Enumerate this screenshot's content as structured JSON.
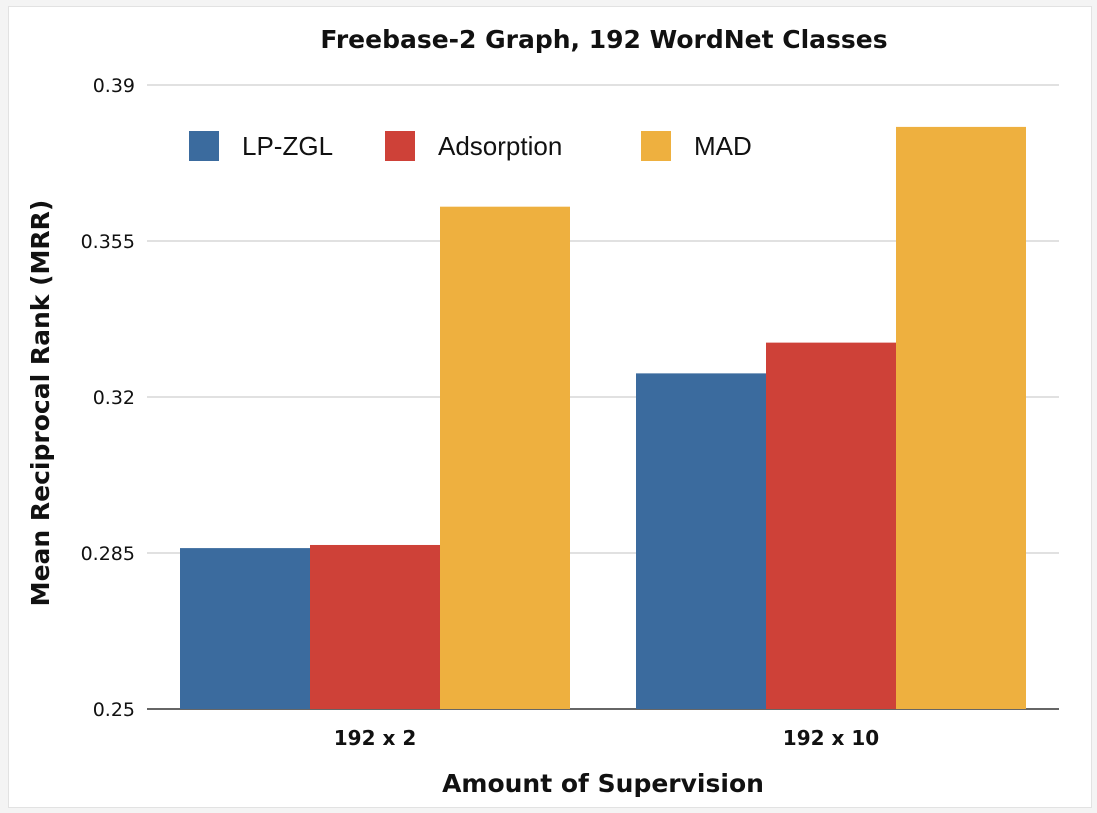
{
  "chart_data": {
    "type": "bar",
    "title": "Freebase-2 Graph, 192 WordNet Classes",
    "xlabel": "Amount of Supervision",
    "ylabel": "Mean Reciprocal Rank (MRR)",
    "categories": [
      "192 x 2",
      "192 x 10"
    ],
    "series": [
      {
        "name": "LP-ZGL",
        "values": [
          0.2861,
          0.3253
        ],
        "color": "#3b6b9e"
      },
      {
        "name": "Adsorption",
        "values": [
          0.2868,
          0.3322
        ],
        "color": "#ce4138"
      },
      {
        "name": "MAD",
        "values": [
          0.3627,
          0.3806
        ],
        "color": "#eeb03f"
      }
    ],
    "ylim": [
      0.25,
      0.39
    ],
    "yticks": [
      "0.25",
      "0.285",
      "0.32",
      "0.355",
      "0.39"
    ],
    "grid": true,
    "legend_position": "top-left"
  }
}
